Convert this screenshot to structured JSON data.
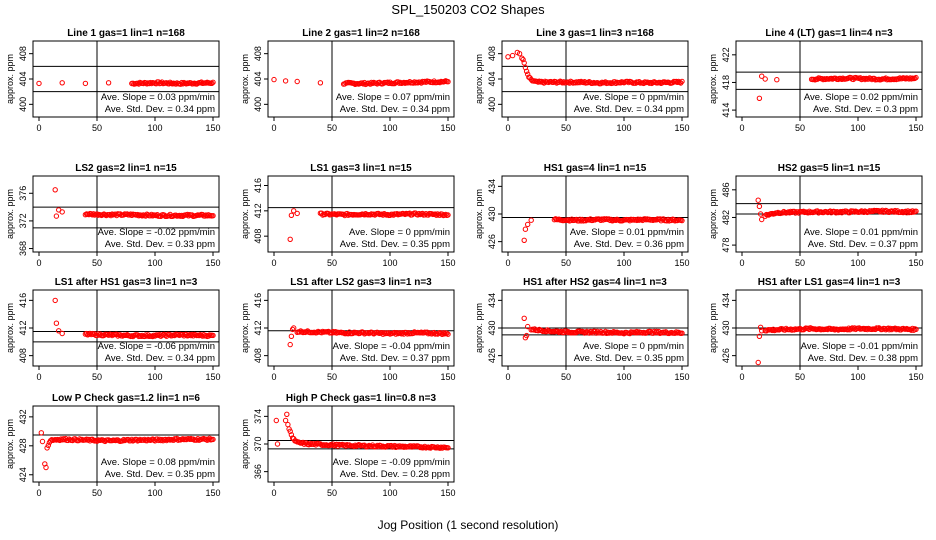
{
  "page": {
    "title": "SPL_150203  CO2 Shapes",
    "xlabel": "Jog Position (1 second resolution)"
  },
  "colors": {
    "points": "#ff0000",
    "axes": "#000000",
    "background": "#ffffff"
  },
  "chart_data": [
    {
      "type": "scatter",
      "title": "Line 1 gas=1 lin=1 n=168",
      "ylabel": "approx. ppm",
      "xlim": [
        0,
        150
      ],
      "ylim": [
        398,
        410
      ],
      "xticks": [
        0,
        50,
        100,
        150
      ],
      "yticks": [
        400,
        404,
        408
      ],
      "ref_lines": [
        406,
        402
      ],
      "vline": 50,
      "points": [
        [
          0,
          403.3
        ],
        [
          20,
          403.4
        ],
        [
          40,
          403.3
        ],
        [
          60,
          403.4
        ],
        [
          80,
          403.3
        ],
        [
          100,
          403.4
        ],
        [
          120,
          403.3
        ],
        [
          150,
          403.4
        ]
      ],
      "slope_text": "Ave. Slope = 0.03  ppm/min",
      "sd_text": "Ave. Std. Dev. = 0.34  ppm"
    },
    {
      "type": "scatter",
      "title": "Line 2 gas=1 lin=2 n=168",
      "ylabel": "approx. ppm",
      "xlim": [
        0,
        150
      ],
      "ylim": [
        398,
        410
      ],
      "xticks": [
        0,
        50,
        100,
        150
      ],
      "yticks": [
        400,
        404,
        408
      ],
      "ref_lines": [],
      "vline": 50,
      "points": [
        [
          0,
          403.9
        ],
        [
          10,
          403.7
        ],
        [
          20,
          403.6
        ],
        [
          40,
          403.4
        ],
        [
          60,
          403.3
        ],
        [
          80,
          403.3
        ],
        [
          100,
          403.4
        ],
        [
          120,
          403.5
        ],
        [
          150,
          403.6
        ]
      ],
      "slope_text": "Ave. Slope = 0.07  ppm/min",
      "sd_text": "Ave. Std. Dev. = 0.34  ppm"
    },
    {
      "type": "scatter",
      "title": "Line 3 gas=1 lin=3 n=168",
      "ylabel": "approx. ppm",
      "xlim": [
        0,
        150
      ],
      "ylim": [
        398,
        410
      ],
      "xticks": [
        0,
        50,
        100,
        150
      ],
      "yticks": [
        400,
        404,
        408
      ],
      "ref_lines": [
        406,
        402
      ],
      "vline": 50,
      "points": [
        [
          0,
          407.5
        ],
        [
          4,
          407.7
        ],
        [
          8,
          408.2
        ],
        [
          10,
          408.0
        ],
        [
          12,
          407.4
        ],
        [
          14,
          406.5
        ],
        [
          16,
          405.1
        ],
        [
          18,
          404.3
        ],
        [
          20,
          403.8
        ],
        [
          25,
          403.5
        ],
        [
          40,
          403.5
        ],
        [
          60,
          403.5
        ],
        [
          80,
          403.4
        ],
        [
          100,
          403.5
        ],
        [
          120,
          403.4
        ],
        [
          150,
          403.5
        ]
      ],
      "slope_text": "Ave. Slope = 0  ppm/min",
      "sd_text": "Ave. Std. Dev. = 0.34  ppm"
    },
    {
      "type": "scatter",
      "title": "Line 4 (LT) gas=1 lin=4 n=3",
      "ylabel": "approx. ppm",
      "xlim": [
        0,
        150
      ],
      "ylim": [
        413,
        424
      ],
      "xticks": [
        0,
        50,
        100,
        150
      ],
      "yticks": [
        414,
        418,
        422
      ],
      "ref_lines": [
        419.5,
        417
      ],
      "vline": 50,
      "points": [
        [
          15,
          415.7
        ],
        [
          17,
          418.9
        ],
        [
          20,
          418.5
        ],
        [
          30,
          418.4
        ],
        [
          60,
          418.5
        ],
        [
          90,
          418.6
        ],
        [
          120,
          418.5
        ],
        [
          150,
          418.6
        ]
      ],
      "slope_text": "Ave. Slope = 0.02  ppm/min",
      "sd_text": "Ave. Std. Dev. = 0.3  ppm"
    },
    {
      "type": "scatter",
      "title": "LS2 gas=2 lin=1 n=15",
      "ylabel": "approx. ppm",
      "xlim": [
        0,
        150
      ],
      "ylim": [
        367.5,
        378.5
      ],
      "xticks": [
        0,
        50,
        100,
        150
      ],
      "yticks": [
        368,
        372,
        376
      ],
      "ref_lines": [
        374,
        371
      ],
      "vline": 50,
      "points": [
        [
          14,
          376.5
        ],
        [
          15,
          372.7
        ],
        [
          17,
          373.6
        ],
        [
          20,
          373.3
        ],
        [
          40,
          373.0
        ],
        [
          60,
          372.9
        ],
        [
          80,
          372.9
        ],
        [
          100,
          372.8
        ],
        [
          120,
          372.8
        ],
        [
          150,
          372.8
        ]
      ],
      "slope_text": "Ave. Slope = -0.02  ppm/min",
      "sd_text": "Ave. Std. Dev. = 0.33  ppm"
    },
    {
      "type": "scatter",
      "title": "LS1 gas=3 lin=1 n=15",
      "ylabel": "approx. ppm",
      "xlim": [
        0,
        150
      ],
      "ylim": [
        405.5,
        417.5
      ],
      "xticks": [
        0,
        50,
        100,
        150
      ],
      "yticks": [
        408,
        412,
        416
      ],
      "ref_lines": [
        412.5
      ],
      "vline": 50,
      "points": [
        [
          14,
          407.5
        ],
        [
          15,
          411.3
        ],
        [
          17,
          412.0
        ],
        [
          20,
          411.6
        ],
        [
          40,
          411.5
        ],
        [
          60,
          411.4
        ],
        [
          80,
          411.5
        ],
        [
          100,
          411.4
        ],
        [
          120,
          411.5
        ],
        [
          150,
          411.4
        ]
      ],
      "slope_text": "Ave. Slope = 0  ppm/min",
      "sd_text": "Ave. Std. Dev. = 0.35  ppm"
    },
    {
      "type": "scatter",
      "title": "HS1 gas=4 lin=1 n=15",
      "ylabel": "approx. ppm",
      "xlim": [
        0,
        150
      ],
      "ylim": [
        424.5,
        435.5
      ],
      "xticks": [
        0,
        50,
        100,
        150
      ],
      "yticks": [
        426,
        430,
        434
      ],
      "ref_lines": [
        429.5
      ],
      "vline": 50,
      "points": [
        [
          14,
          426.2
        ],
        [
          15,
          427.8
        ],
        [
          17,
          428.5
        ],
        [
          20,
          429.1
        ],
        [
          40,
          429.2
        ],
        [
          60,
          429.1
        ],
        [
          80,
          429.2
        ],
        [
          100,
          429.1
        ],
        [
          120,
          429.2
        ],
        [
          150,
          429.1
        ]
      ],
      "slope_text": "Ave. Slope = 0.01  ppm/min",
      "sd_text": "Ave. Std. Dev. = 0.36  ppm"
    },
    {
      "type": "scatter",
      "title": "HS2 gas=5 lin=1 n=15",
      "ylabel": "approx. ppm",
      "xlim": [
        0,
        150
      ],
      "ylim": [
        477,
        488
      ],
      "xticks": [
        0,
        50,
        100,
        150
      ],
      "yticks": [
        478,
        482,
        486
      ],
      "ref_lines": [
        484,
        482.5
      ],
      "vline": 50,
      "points": [
        [
          14,
          484.5
        ],
        [
          15,
          483.6
        ],
        [
          16,
          482.5
        ],
        [
          17,
          481.7
        ],
        [
          20,
          482.3
        ],
        [
          30,
          482.7
        ],
        [
          60,
          482.8
        ],
        [
          90,
          482.8
        ],
        [
          120,
          482.9
        ],
        [
          150,
          482.8
        ]
      ],
      "slope_text": "Ave. Slope = 0.01  ppm/min",
      "sd_text": "Ave. Std. Dev. = 0.37  ppm"
    },
    {
      "type": "scatter",
      "title": "LS1 after HS1 gas=3 lin=1 n=3",
      "ylabel": "approx. ppm",
      "xlim": [
        0,
        150
      ],
      "ylim": [
        406.5,
        417.5
      ],
      "xticks": [
        0,
        50,
        100,
        150
      ],
      "yticks": [
        408,
        412,
        416
      ],
      "ref_lines": [
        411.5,
        410
      ],
      "vline": 50,
      "points": [
        [
          14,
          416.0
        ],
        [
          15,
          412.7
        ],
        [
          17,
          411.6
        ],
        [
          20,
          411.2
        ],
        [
          40,
          411.1
        ],
        [
          60,
          411.0
        ],
        [
          80,
          410.9
        ],
        [
          100,
          410.9
        ],
        [
          120,
          411.0
        ],
        [
          150,
          410.9
        ]
      ],
      "slope_text": "Ave. Slope = -0.06  ppm/min",
      "sd_text": "Ave. Std. Dev. = 0.34  ppm"
    },
    {
      "type": "scatter",
      "title": "LS1 after LS2 gas=3 lin=1 n=3",
      "ylabel": "approx. ppm",
      "xlim": [
        0,
        150
      ],
      "ylim": [
        406.5,
        417.5
      ],
      "xticks": [
        0,
        50,
        100,
        150
      ],
      "yticks": [
        408,
        412,
        416
      ],
      "ref_lines": [
        411.6
      ],
      "vline": 50,
      "points": [
        [
          14,
          409.6
        ],
        [
          15,
          410.8
        ],
        [
          16,
          411.8
        ],
        [
          17,
          412.0
        ],
        [
          20,
          411.5
        ],
        [
          40,
          411.4
        ],
        [
          60,
          411.3
        ],
        [
          80,
          411.3
        ],
        [
          100,
          411.2
        ],
        [
          120,
          411.3
        ],
        [
          150,
          411.2
        ]
      ],
      "slope_text": "Ave. Slope = -0.04  ppm/min",
      "sd_text": "Ave. Std. Dev. = 0.37  ppm"
    },
    {
      "type": "scatter",
      "title": "HS1 after HS2 gas=4 lin=1 n=3",
      "ylabel": "approx. ppm",
      "xlim": [
        0,
        150
      ],
      "ylim": [
        424.5,
        435.5
      ],
      "xticks": [
        0,
        50,
        100,
        150
      ],
      "yticks": [
        426,
        430,
        434
      ],
      "ref_lines": [
        430,
        429
      ],
      "vline": 50,
      "points": [
        [
          14,
          431.4
        ],
        [
          15,
          428.6
        ],
        [
          16,
          428.9
        ],
        [
          17,
          430.2
        ],
        [
          20,
          429.8
        ],
        [
          40,
          429.5
        ],
        [
          60,
          429.4
        ],
        [
          80,
          429.4
        ],
        [
          100,
          429.3
        ],
        [
          120,
          429.4
        ],
        [
          150,
          429.3
        ]
      ],
      "slope_text": "Ave. Slope = 0  ppm/min",
      "sd_text": "Ave. Std. Dev. = 0.35  ppm"
    },
    {
      "type": "scatter",
      "title": "HS1 after LS1 gas=4 lin=1 n=3",
      "ylabel": "approx. ppm",
      "xlim": [
        0,
        150
      ],
      "ylim": [
        424.5,
        435.5
      ],
      "xticks": [
        0,
        50,
        100,
        150
      ],
      "yticks": [
        426,
        430,
        434
      ],
      "ref_lines": [
        430,
        429
      ],
      "vline": 50,
      "points": [
        [
          14,
          425.0
        ],
        [
          15,
          428.8
        ],
        [
          16,
          430.1
        ],
        [
          17,
          429.6
        ],
        [
          20,
          429.7
        ],
        [
          40,
          429.8
        ],
        [
          60,
          429.9
        ],
        [
          80,
          429.8
        ],
        [
          100,
          429.9
        ],
        [
          120,
          429.9
        ],
        [
          150,
          429.8
        ]
      ],
      "slope_text": "Ave. Slope = -0.01  ppm/min",
      "sd_text": "Ave. Std. Dev. = 0.38  ppm"
    },
    {
      "type": "scatter",
      "title": "Low P Check gas=1.2 lin=1 n=6",
      "ylabel": "approx. ppm",
      "xlim": [
        0,
        150
      ],
      "ylim": [
        423,
        433.5
      ],
      "xticks": [
        0,
        50,
        100,
        150
      ],
      "yticks": [
        424,
        428,
        432
      ],
      "ref_lines": [
        429.5
      ],
      "vline": 50,
      "points": [
        [
          2,
          429.8
        ],
        [
          3,
          428.6
        ],
        [
          5,
          425.5
        ],
        [
          6,
          425.0
        ],
        [
          7,
          427.8
        ],
        [
          10,
          428.8
        ],
        [
          20,
          428.9
        ],
        [
          40,
          428.8
        ],
        [
          60,
          428.7
        ],
        [
          80,
          428.8
        ],
        [
          100,
          428.8
        ],
        [
          120,
          428.9
        ],
        [
          150,
          428.9
        ]
      ],
      "slope_text": "Ave. Slope = 0.08  ppm/min",
      "sd_text": "Ave. Std. Dev. = 0.35  ppm"
    },
    {
      "type": "scatter",
      "title": "High P Check gas=1 lin=0.8 n=3",
      "ylabel": "approx. ppm",
      "xlim": [
        0,
        150
      ],
      "ylim": [
        364.5,
        375.5
      ],
      "xticks": [
        0,
        50,
        100,
        150
      ],
      "yticks": [
        366,
        370,
        374
      ],
      "ref_lines": [
        370.5,
        369.3
      ],
      "vline": 50,
      "points": [
        [
          2,
          373.4
        ],
        [
          3,
          370.0
        ],
        [
          10,
          373.4
        ],
        [
          11,
          374.3
        ],
        [
          12,
          372.7
        ],
        [
          14,
          371.9
        ],
        [
          16,
          370.8
        ],
        [
          20,
          370.2
        ],
        [
          30,
          370.0
        ],
        [
          60,
          369.8
        ],
        [
          90,
          369.7
        ],
        [
          120,
          369.6
        ],
        [
          150,
          369.5
        ]
      ],
      "slope_text": "Ave. Slope = -0.09  ppm/min",
      "sd_text": "Ave. Std. Dev. = 0.28  ppm"
    }
  ]
}
